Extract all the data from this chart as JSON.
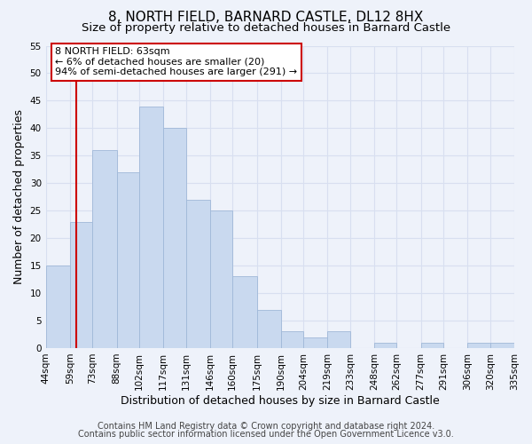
{
  "title": "8, NORTH FIELD, BARNARD CASTLE, DL12 8HX",
  "subtitle": "Size of property relative to detached houses in Barnard Castle",
  "xlabel": "Distribution of detached houses by size in Barnard Castle",
  "ylabel": "Number of detached properties",
  "bin_labels": [
    "44sqm",
    "59sqm",
    "73sqm",
    "88sqm",
    "102sqm",
    "117sqm",
    "131sqm",
    "146sqm",
    "160sqm",
    "175sqm",
    "190sqm",
    "204sqm",
    "219sqm",
    "233sqm",
    "248sqm",
    "262sqm",
    "277sqm",
    "291sqm",
    "306sqm",
    "320sqm",
    "335sqm"
  ],
  "bin_edges": [
    44,
    59,
    73,
    88,
    102,
    117,
    131,
    146,
    160,
    175,
    190,
    204,
    219,
    233,
    248,
    262,
    277,
    291,
    306,
    320,
    335
  ],
  "heights": [
    15,
    23,
    36,
    32,
    44,
    40,
    27,
    25,
    13,
    7,
    3,
    2,
    3,
    0,
    1,
    0,
    1,
    0,
    1,
    1
  ],
  "bar_color": "#c9d9ef",
  "bar_edge_color": "#a0b8d8",
  "vline_x": 63,
  "vline_color": "#cc0000",
  "annotation_lines": [
    "8 NORTH FIELD: 63sqm",
    "← 6% of detached houses are smaller (20)",
    "94% of semi-detached houses are larger (291) →"
  ],
  "annotation_box_facecolor": "#ffffff",
  "annotation_box_edgecolor": "#cc0000",
  "ylim": [
    0,
    55
  ],
  "yticks": [
    0,
    5,
    10,
    15,
    20,
    25,
    30,
    35,
    40,
    45,
    50,
    55
  ],
  "footer_line1": "Contains HM Land Registry data © Crown copyright and database right 2024.",
  "footer_line2": "Contains public sector information licensed under the Open Government Licence v3.0.",
  "bg_color": "#eef2fa",
  "plot_bg_color": "#eef2fa",
  "grid_color": "#d8dff0",
  "title_fontsize": 11,
  "subtitle_fontsize": 9.5,
  "axis_label_fontsize": 9,
  "tick_fontsize": 7.5,
  "footer_fontsize": 7
}
